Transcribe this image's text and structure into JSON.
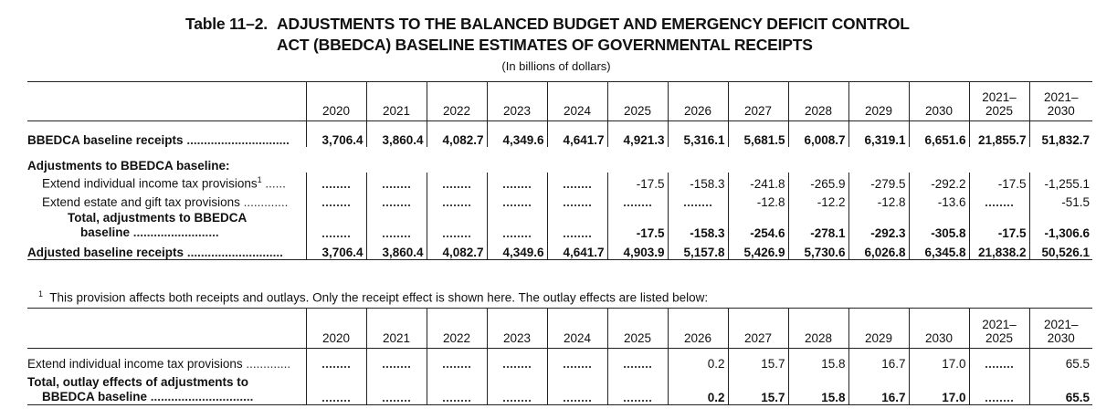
{
  "title": {
    "number": "Table 11–2.",
    "line1": "ADJUSTMENTS TO THE BALANCED BUDGET AND EMERGENCY DEFICIT CONTROL",
    "line2": "ACT (BBEDCA) BASELINE ESTIMATES OF GOVERNMENTAL RECEIPTS",
    "subtitle": "(In billions of dollars)"
  },
  "columns": [
    "2020",
    "2021",
    "2022",
    "2023",
    "2024",
    "2025",
    "2026",
    "2027",
    "2028",
    "2029",
    "2030",
    "2021–\n2025",
    "2021–\n2030"
  ],
  "receipts_table": {
    "baseline_receipts": {
      "label": "BBEDCA baseline receipts",
      "values": [
        "3,706.4",
        "3,860.4",
        "4,082.7",
        "4,349.6",
        "4,641.7",
        "4,921.3",
        "5,316.1",
        "5,681.5",
        "6,008.7",
        "6,319.1",
        "6,651.6",
        "21,855.7",
        "51,832.7"
      ]
    },
    "adjustments_heading": "Adjustments to BBEDCA baseline:",
    "income_tax": {
      "label": "Extend individual income tax provisions",
      "footnote": "1",
      "values": [
        "",
        "",
        "",
        "",
        "",
        "-17.5",
        "-158.3",
        "-241.8",
        "-265.9",
        "-279.5",
        "-292.2",
        "-17.5",
        "-1,255.1"
      ]
    },
    "estate_tax": {
      "label": "Extend estate and gift tax provisions",
      "values": [
        "",
        "",
        "",
        "",
        "",
        "",
        "",
        "-12.8",
        "-12.2",
        "-12.8",
        "-13.6",
        "",
        "-51.5"
      ]
    },
    "total_adjustments": {
      "label_line1": "Total, adjustments to BBEDCA",
      "label_line2": "baseline",
      "values": [
        "",
        "",
        "",
        "",
        "",
        "-17.5",
        "-158.3",
        "-254.6",
        "-278.1",
        "-292.3",
        "-305.8",
        "-17.5",
        "-1,306.6"
      ]
    },
    "adjusted_receipts": {
      "label": "Adjusted baseline receipts",
      "values": [
        "3,706.4",
        "3,860.4",
        "4,082.7",
        "4,349.6",
        "4,641.7",
        "4,903.9",
        "5,157.8",
        "5,426.9",
        "5,730.6",
        "6,026.8",
        "6,345.8",
        "21,838.2",
        "50,526.1"
      ]
    }
  },
  "footnote": {
    "marker": "1",
    "text": "This provision affects both receipts and outlays.  Only the receipt effect is shown here.  The outlay effects are listed below:"
  },
  "outlay_table": {
    "income_tax": {
      "label": "Extend individual income tax provisions",
      "values": [
        "",
        "",
        "",
        "",
        "",
        "",
        "0.2",
        "15.7",
        "15.8",
        "16.7",
        "17.0",
        "",
        "65.5"
      ]
    },
    "total_outlay": {
      "label_line1": "Total, outlay effects of adjustments to",
      "label_line2": "BBEDCA baseline",
      "values": [
        "",
        "",
        "",
        "",
        "",
        "",
        "0.2",
        "15.7",
        "15.8",
        "16.7",
        "17.0",
        "",
        "65.5"
      ]
    }
  }
}
